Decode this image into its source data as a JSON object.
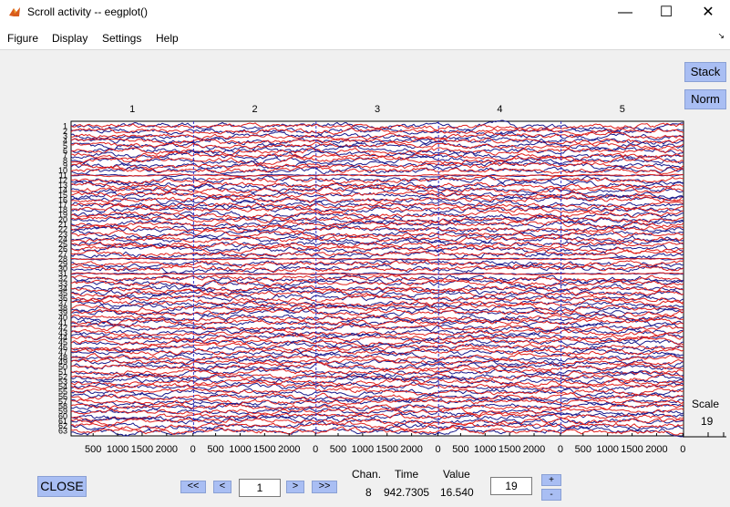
{
  "window": {
    "title": "Scroll activity -- eegplot()",
    "minimize": "—",
    "maximize": "☐",
    "close": "✕"
  },
  "menu": [
    "Figure",
    "Display",
    "Settings",
    "Help"
  ],
  "side_buttons": {
    "stack": "Stack",
    "norm": "Norm"
  },
  "scale": {
    "label": "Scale",
    "value": "19"
  },
  "epochs": [
    "1",
    "2",
    "3",
    "4",
    "5"
  ],
  "xticks": [
    "500",
    "1000",
    "1500",
    "2000",
    "0"
  ],
  "channel_count": 63,
  "bottom": {
    "close": "CLOSE",
    "prev_fast": "<<",
    "prev": "<",
    "next": ">",
    "next_fast": ">>",
    "epoch_value": "1",
    "chan_label": "Chan.",
    "time_label": "Time",
    "value_label": "Value",
    "chan_value": "8",
    "time_value": "942.7305",
    "value_value": "16.540",
    "scale_value": "19",
    "plus": "+",
    "minus": "-"
  },
  "colors": {
    "trace_a": "#e0201c",
    "trace_b": "#1a1a8c",
    "epoch_line": "#3333cc",
    "button": "#a9bef3"
  }
}
